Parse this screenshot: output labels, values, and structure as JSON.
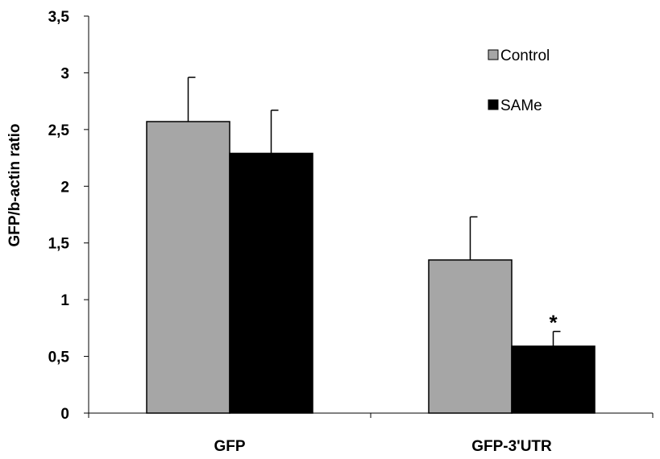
{
  "chart_data": {
    "type": "bar",
    "title": "",
    "xlabel": "",
    "ylabel": "GFP/b-actin ratio",
    "ylim": [
      0,
      3.5
    ],
    "yticks": [
      "0",
      "0,5",
      "1",
      "1,5",
      "2",
      "2,5",
      "3",
      "3,5"
    ],
    "categories": [
      "GFP",
      "GFP-3'UTR"
    ],
    "grid": false,
    "legend_position": "top-right",
    "series": [
      {
        "name": "Control",
        "color": "#a6a6a6",
        "values": [
          2.57,
          1.35
        ],
        "errors": [
          0.39,
          0.38
        ]
      },
      {
        "name": "SAMe",
        "color": "#000000",
        "values": [
          2.29,
          0.59
        ],
        "errors": [
          0.38,
          0.13
        ]
      }
    ],
    "annotations": [
      {
        "text": "*",
        "category_index": 1,
        "series_index": 1
      }
    ]
  }
}
